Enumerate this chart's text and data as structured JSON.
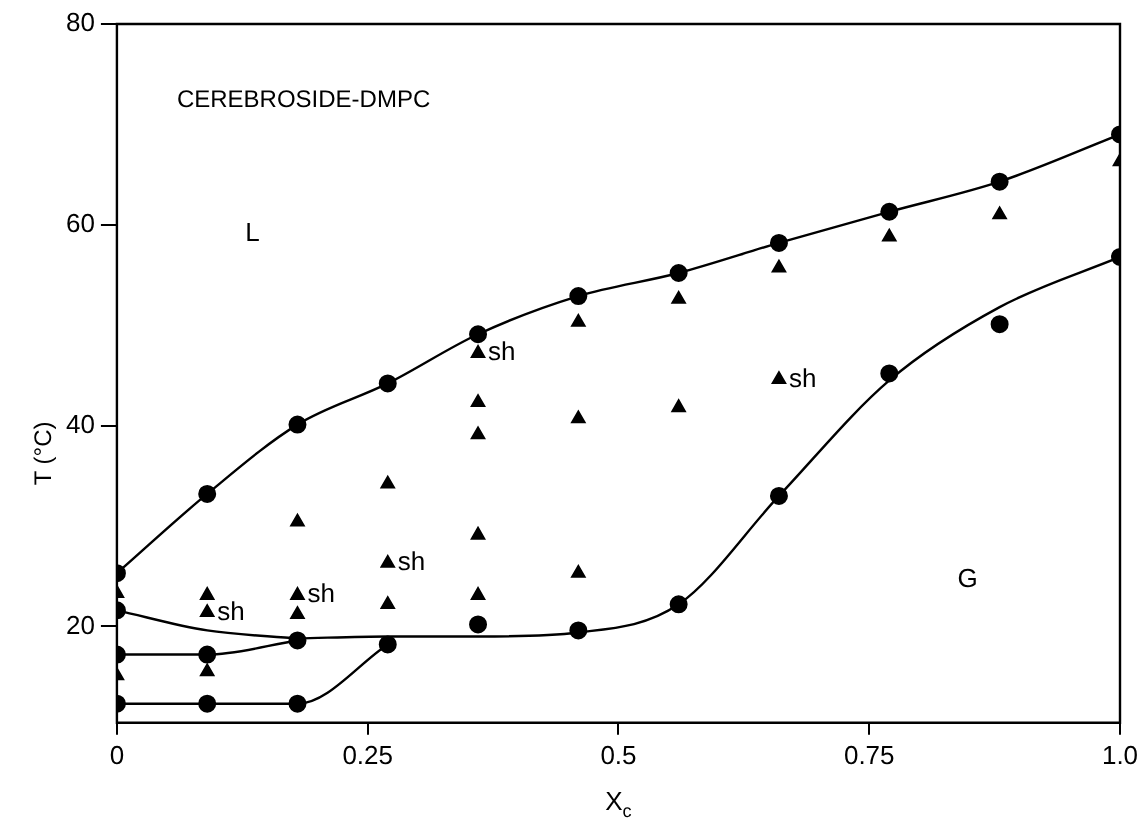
{
  "chart_data": {
    "type": "scatter",
    "title": "CEREBROSIDE-DMPC",
    "xlabel": "X$_{c}$",
    "ylabel": "T (°C)",
    "xlim": [
      0,
      1
    ],
    "xticks": [
      0,
      0.25,
      0.5,
      0.75,
      {
        "value": 1,
        "label": "1.0"
      }
    ],
    "ylim": [
      10.4,
      80
    ],
    "yticks": [
      20,
      40,
      60,
      80
    ],
    "grid": false,
    "legend": false,
    "series": [
      {
        "type": "line",
        "marker": "none",
        "color": "#000000",
        "x": [
          0,
          0.09,
          0.18,
          0.27,
          0.36,
          0.46,
          0.56,
          0.66,
          0.77,
          0.88,
          1.0
        ],
        "values": [
          25.3,
          33.2,
          40.1,
          44.2,
          49.1,
          52.9,
          55.2,
          58.2,
          61.3,
          64.3,
          69.0
        ]
      },
      {
        "type": "line",
        "marker": "none",
        "color": "#000000",
        "x": [
          0.18,
          0.27,
          0.36,
          0.46,
          0.56,
          0.66,
          0.77,
          0.88,
          1.0
        ],
        "values": [
          18.8,
          19.0,
          19.0,
          19.4,
          22.2,
          33.0,
          44.5,
          51.8,
          56.8
        ]
      },
      {
        "type": "line",
        "marker": "none",
        "color": "#000000",
        "x": [
          0,
          0.09,
          0.18
        ],
        "values": [
          21.6,
          19.6,
          18.8
        ]
      },
      {
        "type": "line",
        "marker": "none",
        "color": "#000000",
        "x": [
          0,
          0.09,
          0.18
        ],
        "values": [
          17.2,
          17.2,
          18.6
        ]
      },
      {
        "type": "line",
        "marker": "none",
        "color": "#000000",
        "x": [
          0,
          0.09,
          0.18,
          0.27
        ],
        "values": [
          12.3,
          12.3,
          12.3,
          18.2
        ]
      },
      {
        "type": "scatter",
        "marker": "circle",
        "color": "#000000",
        "x": [
          0,
          0.09,
          0.18,
          0.27,
          0.36,
          0.46,
          0.56,
          0.66,
          0.77,
          0.88,
          1.0,
          1.0,
          0.88,
          0.77,
          0.66,
          0.56,
          0.46,
          0.36,
          0.27,
          0.18,
          0,
          0,
          0,
          0.09,
          0.09,
          0.18
        ],
        "values": [
          25.3,
          33.2,
          40.1,
          44.2,
          49.1,
          52.9,
          55.2,
          58.2,
          61.3,
          64.3,
          69.0,
          56.8,
          50.1,
          45.2,
          33.0,
          22.2,
          19.6,
          20.2,
          18.2,
          18.6,
          21.6,
          17.2,
          12.3,
          17.2,
          12.3,
          12.3
        ]
      },
      {
        "type": "scatter",
        "marker": "triangle",
        "color": "#000000",
        "x": [
          0,
          0,
          0.09,
          0.09,
          0.09,
          0.18,
          0.18,
          0.18,
          0.27,
          0.27,
          0.27,
          0.36,
          0.36,
          0.36,
          0.36,
          0.36,
          0.46,
          0.46,
          0.46,
          0.56,
          0.56,
          0.66,
          0.66,
          0.77,
          0.88,
          1.0
        ],
        "values": [
          23.3,
          15.1,
          23.1,
          21.4,
          15.5,
          30.4,
          23.1,
          21.2,
          34.2,
          26.3,
          22.2,
          47.2,
          42.3,
          39.1,
          29.1,
          23.1,
          50.3,
          40.7,
          25.3,
          52.6,
          41.8,
          55.7,
          44.6,
          58.8,
          61.0,
          66.3
        ]
      }
    ],
    "annotations": [
      "L",
      "G",
      {
        "text": "sh",
        "x": 0.09,
        "y": 21.4
      },
      {
        "text": "sh",
        "x": 0.18,
        "y": 23.1
      },
      {
        "text": "sh",
        "x": 0.27,
        "y": 26.3
      },
      {
        "text": "sh",
        "x": 0.36,
        "y": 47.2
      },
      {
        "text": "sh",
        "x": 0.66,
        "y": 44.6
      }
    ]
  }
}
